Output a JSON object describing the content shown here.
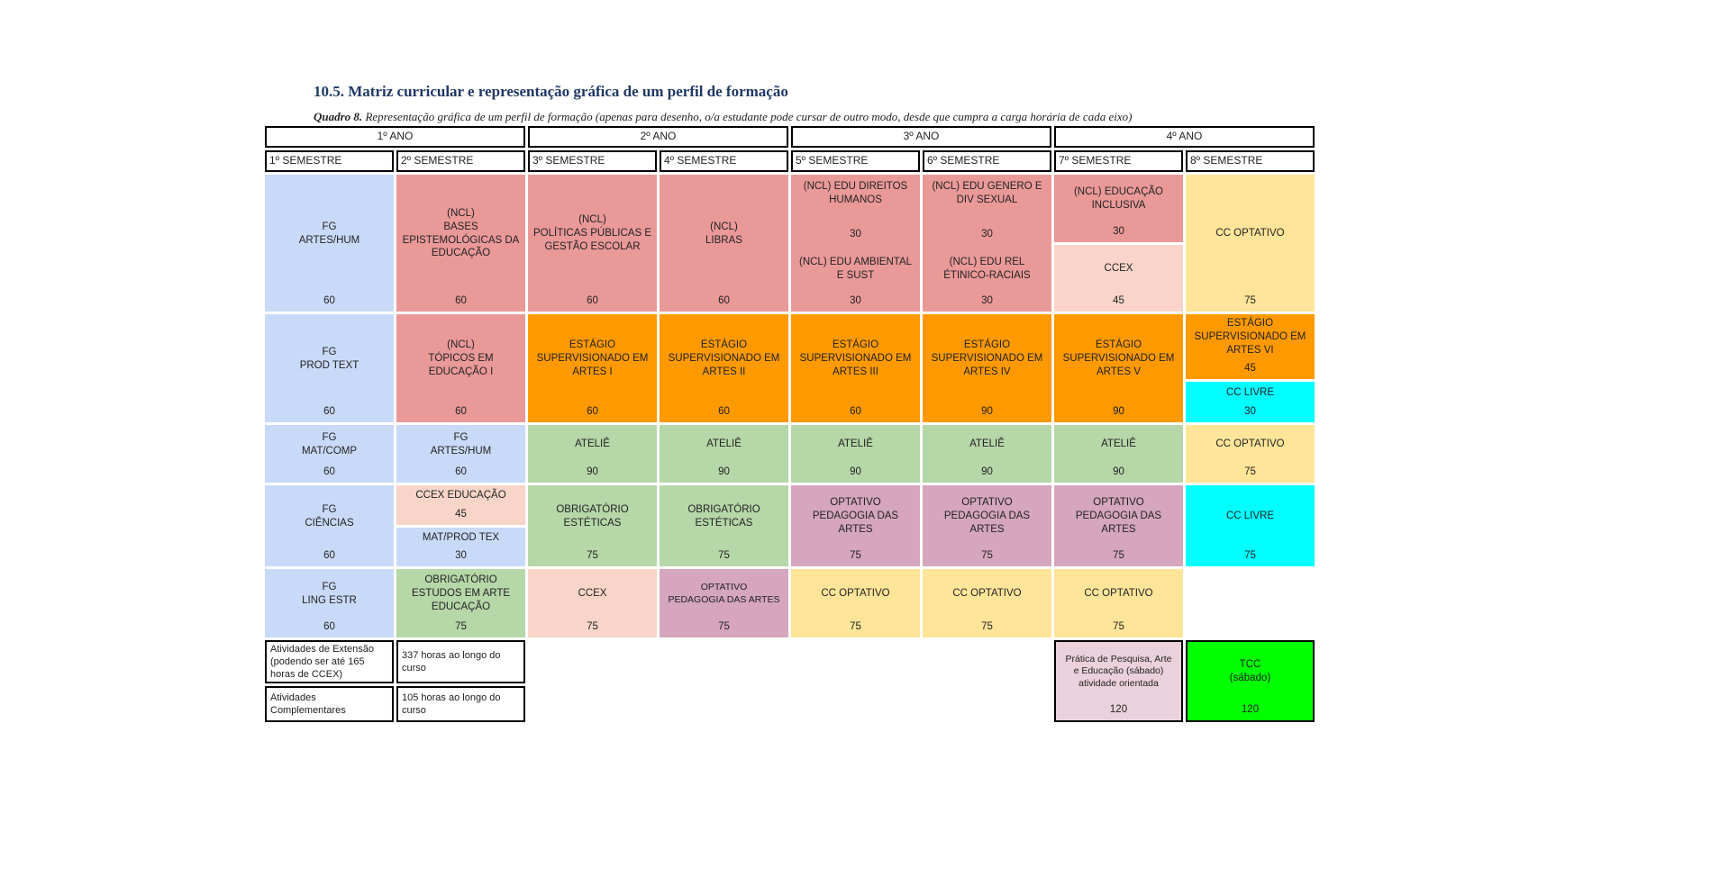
{
  "heading": {
    "title": "10.5. Matriz curricular e representação gráfica de um perfil de formação",
    "caption_label": "Quadro 8.",
    "caption_text": "Representação gráfica de um perfil de formação (apenas para desenho, o/a estudante pode cursar de outro modo, desde que cumpra a carga horária de cada eixo)"
  },
  "years": [
    "1º ANO",
    "2º ANO",
    "3º ANO",
    "4º ANO"
  ],
  "semesters": [
    "1º SEMESTRE",
    "2º SEMESTRE",
    "3º SEMESTRE",
    "4º SEMESTRE",
    "5º SEMESTRE",
    "6º SEMESTRE",
    "7º SEMESTRE",
    "8º SEMESTRE"
  ],
  "rows": {
    "r1": {
      "s1": {
        "name": "FG\nARTES/HUM",
        "hours": "60"
      },
      "s2": {
        "name": "(NCL)\nBASES\nEPISTEMOLÓGICAS DA\nEDUCAÇÃO",
        "hours": "60"
      },
      "s3": {
        "name": "(NCL)\nPOLÍTICAS PÚBLICAS E\nGESTÃO ESCOLAR",
        "hours": "60"
      },
      "s4": {
        "name": "(NCL)\nLIBRAS",
        "hours": "60"
      },
      "s5": {
        "name_a": "(NCL) EDU DIREITOS\nHUMANOS",
        "hours_a": "30",
        "name_b": "(NCL) EDU AMBIENTAL\nE SUST",
        "hours_b": "30"
      },
      "s6": {
        "name_a": "(NCL) EDU GENERO E\nDIV SEXUAL",
        "hours_a": "30",
        "name_b": "(NCL) EDU REL\nÉTINICO-RACIAIS",
        "hours_b": "30"
      },
      "s7": {
        "name_a": "(NCL) EDUCAÇÃO\nINCLUSIVA",
        "hours_a": "30",
        "name_b": "CCEX",
        "hours_b": "45"
      },
      "s8": {
        "name": "CC OPTATIVO",
        "hours": "75"
      }
    },
    "r2": {
      "s1": {
        "name": "FG\nPROD TEXT",
        "hours": "60"
      },
      "s2": {
        "name": "(NCL)\nTÓPICOS EM\nEDUCAÇÃO I",
        "hours": "60"
      },
      "s3": {
        "name": "ESTÁGIO\nSUPERVISIONADO EM\nARTES I",
        "hours": "60"
      },
      "s4": {
        "name": "ESTÁGIO\nSUPERVISIONADO EM\nARTES II",
        "hours": "60"
      },
      "s5": {
        "name": "ESTÁGIO\nSUPERVISIONADO EM\nARTES III",
        "hours": "60"
      },
      "s6": {
        "name": "ESTÁGIO\nSUPERVISIONADO EM\nARTES IV",
        "hours": "90"
      },
      "s7": {
        "name": "ESTÁGIO\nSUPERVISIONADO EM\nARTES V",
        "hours": "90"
      },
      "s8": {
        "name_a": "ESTÁGIO\nSUPERVISIONADO EM\nARTES VI",
        "hours_a": "45",
        "name_b": "CC LIVRE",
        "hours_b": "30"
      }
    },
    "r3": {
      "s1": {
        "name": "FG\nMAT/COMP",
        "hours": "60"
      },
      "s2": {
        "name": "FG\nARTES/HUM",
        "hours": "60"
      },
      "s3": {
        "name": "ATELIÊ",
        "hours": "90"
      },
      "s4": {
        "name": "ATELIÊ",
        "hours": "90"
      },
      "s5": {
        "name": "ATELIÊ",
        "hours": "90"
      },
      "s6": {
        "name": "ATELIÊ",
        "hours": "90"
      },
      "s7": {
        "name": "ATELIÊ",
        "hours": "90"
      },
      "s8": {
        "name": "CC OPTATIVO",
        "hours": "75"
      }
    },
    "r4": {
      "s1": {
        "name": "FG\nCIÊNCIAS",
        "hours": "60"
      },
      "s2": {
        "name_a": "CCEX EDUCAÇÃO",
        "hours_a": "45",
        "name_b": "MAT/PROD TEX",
        "hours_b": "30"
      },
      "s3": {
        "name": "OBRIGATÓRIO\nESTÉTICAS",
        "hours": "75"
      },
      "s4": {
        "name": "OBRIGATÓRIO\nESTÉTICAS",
        "hours": "75"
      },
      "s5": {
        "name": "OPTATIVO\nPEDAGOGIA DAS\nARTES",
        "hours": "75"
      },
      "s6": {
        "name": "OPTATIVO\nPEDAGOGIA DAS\nARTES",
        "hours": "75"
      },
      "s7": {
        "name": "OPTATIVO\nPEDAGOGIA DAS\nARTES",
        "hours": "75"
      },
      "s8": {
        "name": "CC LIVRE",
        "hours": "75"
      }
    },
    "r5": {
      "s1": {
        "name": "FG\nLING ESTR",
        "hours": "60"
      },
      "s2": {
        "name": "OBRIGATÓRIO\nESTUDOS  EM ARTE\nEDUCAÇÃO",
        "hours": "75"
      },
      "s3": {
        "name": "CCEX",
        "hours": "75"
      },
      "s4": {
        "name": "OPTATIVO\nPEDAGOGIA DAS ARTES",
        "hours": "75"
      },
      "s5": {
        "name": "CC OPTATIVO",
        "hours": "75"
      },
      "s6": {
        "name": "CC OPTATIVO",
        "hours": "75"
      },
      "s7": {
        "name": "CC OPTATIVO",
        "hours": "75"
      }
    }
  },
  "extras": {
    "extensao_label": "Atividades de Extensão\n(podendo ser até 165\nhoras de CCEX)",
    "extensao_value": "337 horas ao longo do\ncurso",
    "complementares_label": "Atividades\nComplementares",
    "complementares_value": "105 horas ao longo do\ncurso",
    "pratica_name": "Prática de Pesquisa, Arte\ne Educação (sábado)\natividade orientada",
    "pratica_hours": "120",
    "tcc_name": "TCC\n(sábado)",
    "tcc_hours": "120"
  },
  "colors": {
    "fg_blue": "#c9daf8",
    "ncl_red": "#ea9999",
    "estagio_orange": "#ff9900",
    "atelie_green": "#b6d7a8",
    "optativo_purple": "#d5a6bd",
    "cc_optativo_yellow": "#ffe599",
    "ccex_peach": "#f8d5c8",
    "cc_livre_cyan": "#00ffff",
    "tcc_green": "#00ff00",
    "pratica_pink": "#ead1dc"
  }
}
